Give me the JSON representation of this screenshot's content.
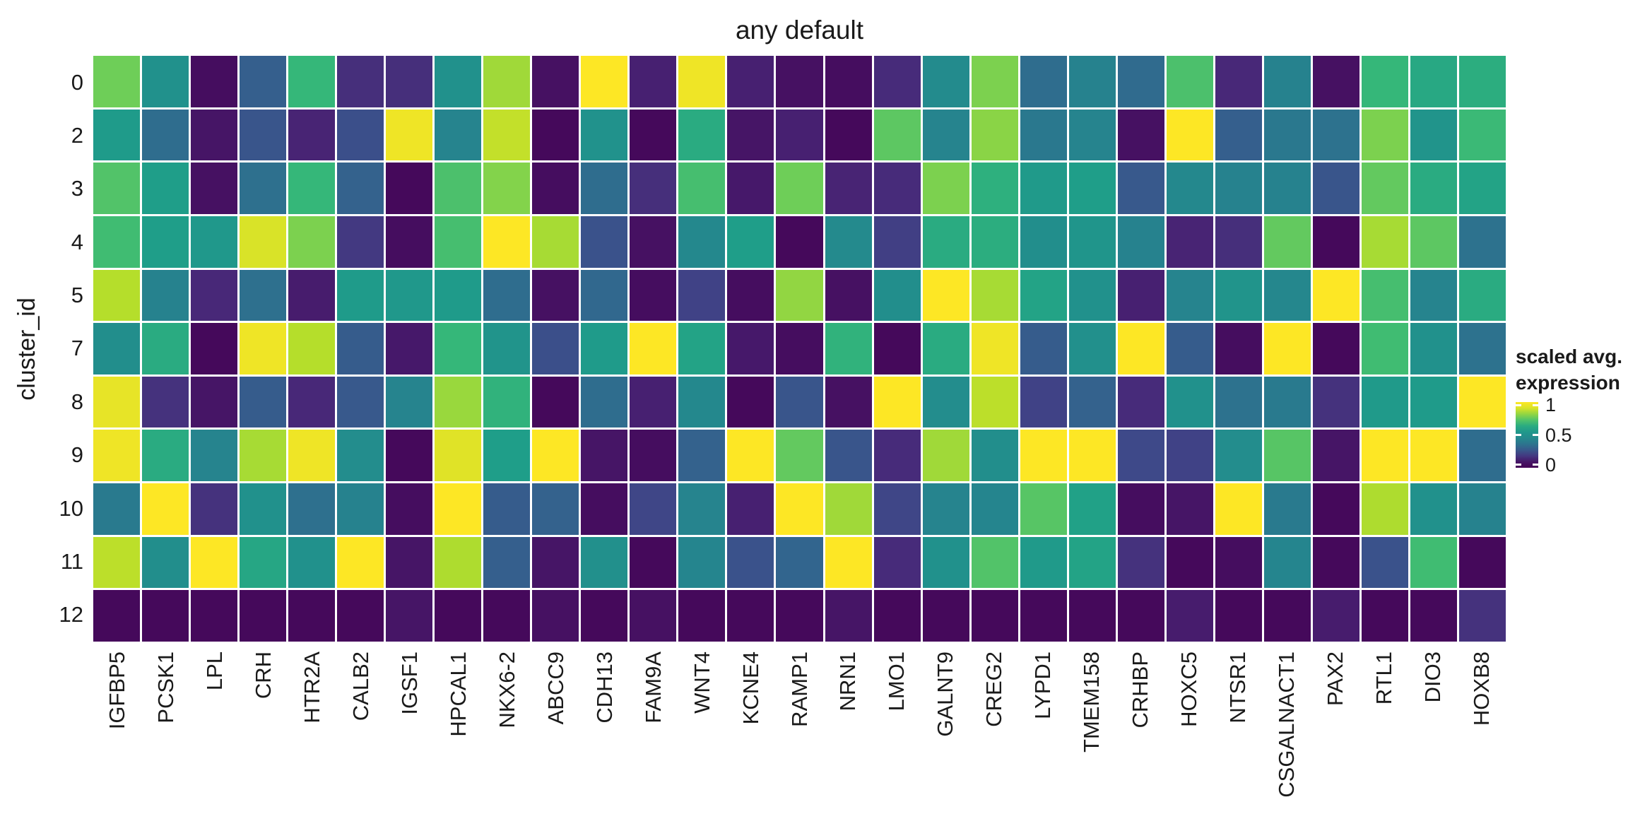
{
  "title": "any default",
  "y_axis": {
    "label": "cluster_id"
  },
  "legend": {
    "title_line1": "scaled avg.",
    "title_line2": "expression",
    "ticks": [
      "1",
      "0.5",
      "0"
    ],
    "tick_values": [
      1,
      0.5,
      0
    ]
  },
  "chart_data": {
    "type": "heatmap",
    "title": "any default",
    "xlabel": "",
    "ylabel": "cluster_id",
    "legend_title": "scaled avg. expression",
    "legend_position": "right",
    "grid": false,
    "color_scale": {
      "name": "viridis",
      "domain": [
        0,
        1
      ],
      "stops": [
        "#440154",
        "#482878",
        "#3e4989",
        "#31688e",
        "#26828e",
        "#21918c",
        "#1f9e89",
        "#35b779",
        "#6ece58",
        "#b5de2b",
        "#fde725"
      ]
    },
    "columns": [
      "IGFBP5",
      "PCSK1",
      "LPL",
      "CRH",
      "HTR2A",
      "CALB2",
      "IGSF1",
      "HPCAL1",
      "NKX6-2",
      "ABCC9",
      "CDH13",
      "FAM9A",
      "WNT4",
      "KCNE4",
      "RAMP1",
      "NRN1",
      "LMO1",
      "GALNT9",
      "CREG2",
      "LYPD1",
      "TMEM158",
      "CRHBP",
      "HOXC5",
      "NTSR1",
      "CSGALNACT1",
      "PAX2",
      "RTL1",
      "DIO3",
      "HOXB8"
    ],
    "rows": [
      "0",
      "2",
      "3",
      "4",
      "5",
      "7",
      "8",
      "9",
      "10",
      "11",
      "12"
    ],
    "values": [
      [
        0.8,
        0.5,
        0.03,
        0.27,
        0.7,
        0.12,
        0.12,
        0.5,
        0.87,
        0.04,
        1.0,
        0.08,
        0.98,
        0.08,
        0.04,
        0.03,
        0.11,
        0.46,
        0.82,
        0.32,
        0.4,
        0.31,
        0.74,
        0.1,
        0.4,
        0.04,
        0.7,
        0.64,
        0.66
      ],
      [
        0.58,
        0.32,
        0.05,
        0.24,
        0.09,
        0.22,
        0.98,
        0.41,
        0.92,
        0.02,
        0.51,
        0.02,
        0.65,
        0.05,
        0.08,
        0.02,
        0.77,
        0.41,
        0.84,
        0.36,
        0.41,
        0.04,
        1.0,
        0.27,
        0.36,
        0.34,
        0.82,
        0.52,
        0.71
      ],
      [
        0.75,
        0.6,
        0.04,
        0.33,
        0.7,
        0.28,
        0.02,
        0.74,
        0.83,
        0.03,
        0.32,
        0.12,
        0.73,
        0.06,
        0.8,
        0.09,
        0.11,
        0.82,
        0.67,
        0.57,
        0.6,
        0.25,
        0.44,
        0.4,
        0.4,
        0.24,
        0.78,
        0.65,
        0.62
      ],
      [
        0.72,
        0.6,
        0.55,
        0.95,
        0.82,
        0.15,
        0.03,
        0.73,
        1.0,
        0.88,
        0.23,
        0.04,
        0.44,
        0.6,
        0.02,
        0.45,
        0.17,
        0.65,
        0.66,
        0.48,
        0.53,
        0.4,
        0.09,
        0.12,
        0.78,
        0.02,
        0.88,
        0.77,
        0.34
      ],
      [
        0.9,
        0.4,
        0.1,
        0.33,
        0.07,
        0.58,
        0.55,
        0.58,
        0.32,
        0.04,
        0.3,
        0.03,
        0.18,
        0.03,
        0.85,
        0.04,
        0.48,
        1.0,
        0.88,
        0.62,
        0.5,
        0.08,
        0.41,
        0.52,
        0.43,
        1.0,
        0.73,
        0.41,
        0.65
      ],
      [
        0.48,
        0.65,
        0.02,
        0.98,
        0.9,
        0.26,
        0.06,
        0.7,
        0.52,
        0.22,
        0.58,
        1.0,
        0.62,
        0.06,
        0.03,
        0.68,
        0.02,
        0.65,
        0.98,
        0.26,
        0.49,
        1.0,
        0.26,
        0.03,
        1.0,
        0.02,
        0.72,
        0.5,
        0.34
      ],
      [
        0.97,
        0.13,
        0.05,
        0.26,
        0.1,
        0.25,
        0.41,
        0.86,
        0.68,
        0.02,
        0.32,
        0.08,
        0.44,
        0.02,
        0.24,
        0.04,
        1.0,
        0.47,
        0.91,
        0.18,
        0.28,
        0.11,
        0.5,
        0.34,
        0.37,
        0.13,
        0.57,
        0.58,
        1.0
      ],
      [
        0.98,
        0.65,
        0.41,
        0.88,
        0.98,
        0.47,
        0.02,
        0.96,
        0.6,
        1.0,
        0.05,
        0.03,
        0.28,
        1.0,
        0.78,
        0.24,
        0.11,
        0.87,
        0.48,
        1.0,
        1.0,
        0.2,
        0.18,
        0.47,
        0.76,
        0.05,
        1.0,
        1.0,
        0.32
      ],
      [
        0.37,
        1.0,
        0.13,
        0.5,
        0.33,
        0.4,
        0.03,
        1.0,
        0.26,
        0.28,
        0.03,
        0.19,
        0.41,
        0.08,
        1.0,
        0.87,
        0.19,
        0.41,
        0.42,
        0.76,
        0.61,
        0.03,
        0.05,
        1.0,
        0.37,
        0.02,
        0.89,
        0.5,
        0.4
      ],
      [
        0.91,
        0.48,
        1.0,
        0.63,
        0.5,
        1.0,
        0.05,
        0.89,
        0.27,
        0.05,
        0.49,
        0.02,
        0.42,
        0.23,
        0.29,
        1.0,
        0.11,
        0.5,
        0.75,
        0.57,
        0.62,
        0.13,
        0.02,
        0.03,
        0.42,
        0.02,
        0.23,
        0.72,
        0.02
      ],
      [
        0.02,
        0.02,
        0.02,
        0.02,
        0.02,
        0.02,
        0.05,
        0.02,
        0.02,
        0.04,
        0.02,
        0.04,
        0.02,
        0.02,
        0.02,
        0.05,
        0.02,
        0.02,
        0.02,
        0.02,
        0.02,
        0.02,
        0.07,
        0.02,
        0.02,
        0.07,
        0.02,
        0.02,
        0.13
      ]
    ]
  }
}
